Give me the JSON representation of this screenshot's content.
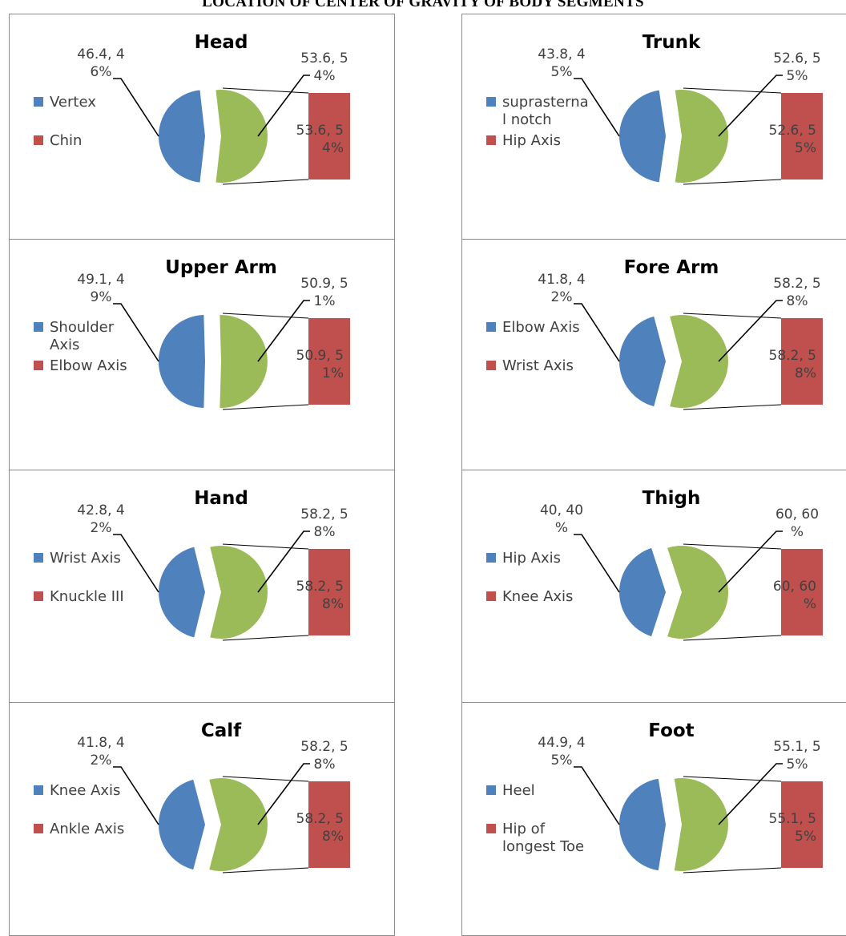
{
  "page_title": "LOCATION OF CENTER OF GRAVITY OF BODY SEGMENTS",
  "colors": {
    "proximal": "#4f81bd",
    "distal_pie": "#9bbb59",
    "distal_bar": "#c0504d",
    "leader": "#000000"
  },
  "chart_data": [
    {
      "type": "bar-of-pie",
      "title": "Head",
      "legend": [
        "Vertex",
        "Chin"
      ],
      "values": [
        46.4,
        53.6
      ],
      "labels": {
        "left": [
          "46.4, 4",
          "6%"
        ],
        "right": [
          "53.6, 5",
          "4%"
        ],
        "bar": [
          "53.6, 5",
          "4%"
        ]
      }
    },
    {
      "type": "bar-of-pie",
      "title": "Trunk",
      "legend": [
        "suprasterna l notch",
        "Hip Axis"
      ],
      "values": [
        43.8,
        52.6
      ],
      "labels": {
        "left": [
          "43.8, 4",
          "5%"
        ],
        "right": [
          "52.6, 5",
          "5%"
        ],
        "bar": [
          "52.6, 5",
          "5%"
        ]
      }
    },
    {
      "type": "bar-of-pie",
      "title": "Upper Arm",
      "legend": [
        "Shoulder Axis",
        "Elbow Axis"
      ],
      "values": [
        49.1,
        50.9
      ],
      "labels": {
        "left": [
          "49.1, 4",
          "9%"
        ],
        "right": [
          "50.9, 5",
          "1%"
        ],
        "bar": [
          "50.9, 5",
          "1%"
        ]
      }
    },
    {
      "type": "bar-of-pie",
      "title": "Fore Arm",
      "legend": [
        "Elbow Axis",
        "Wrist Axis"
      ],
      "values": [
        41.8,
        58.2
      ],
      "labels": {
        "left": [
          "41.8, 4",
          "2%"
        ],
        "right": [
          "58.2, 5",
          "8%"
        ],
        "bar": [
          "58.2, 5",
          "8%"
        ]
      }
    },
    {
      "type": "bar-of-pie",
      "title": "Hand",
      "legend": [
        "Wrist Axis",
        "Knuckle III"
      ],
      "values": [
        42.8,
        58.2
      ],
      "labels": {
        "left": [
          "42.8, 4",
          "2%"
        ],
        "right": [
          "58.2, 5",
          "8%"
        ],
        "bar": [
          "58.2, 5",
          "8%"
        ]
      }
    },
    {
      "type": "bar-of-pie",
      "title": "Thigh",
      "legend": [
        "Hip Axis",
        "Knee Axis"
      ],
      "values": [
        40,
        60
      ],
      "labels": {
        "left": [
          "40, 40",
          "%"
        ],
        "right": [
          "60, 60",
          "%"
        ],
        "bar": [
          "60, 60",
          "%"
        ]
      }
    },
    {
      "type": "bar-of-pie",
      "title": "Calf",
      "legend": [
        "Knee Axis",
        "Ankle Axis"
      ],
      "values": [
        41.8,
        58.2
      ],
      "labels": {
        "left": [
          "41.8, 4",
          "2%"
        ],
        "right": [
          "58.2, 5",
          "8%"
        ],
        "bar": [
          "58.2, 5",
          "8%"
        ]
      }
    },
    {
      "type": "bar-of-pie",
      "title": "Foot",
      "legend": [
        "Heel",
        "Hip of longest Toe"
      ],
      "values": [
        44.9,
        55.1
      ],
      "labels": {
        "left": [
          "44.9, 4",
          "5%"
        ],
        "right": [
          "55.1, 5",
          "5%"
        ],
        "bar": [
          "55.1, 5",
          "5%"
        ]
      }
    }
  ]
}
